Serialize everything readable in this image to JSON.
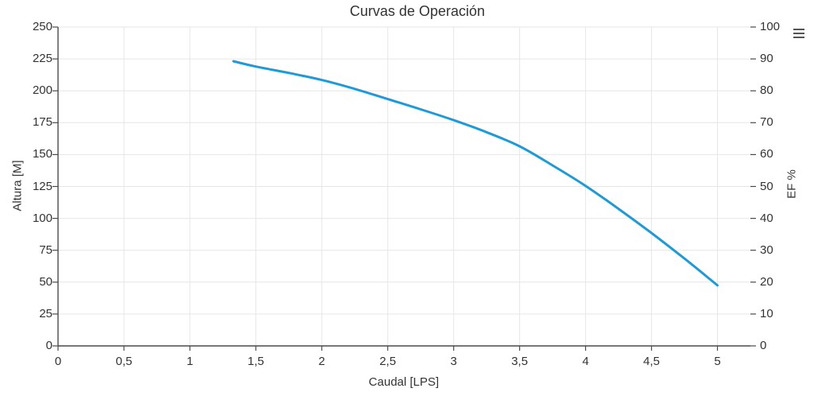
{
  "title": "Curvas de Operación",
  "menu_icon": "hamburger-icon",
  "colors": {
    "series": "#1e9ad8",
    "grid": "#e6e6e6",
    "axis": "#4a4a4a",
    "tick_text": "#333333",
    "title_text": "#333333",
    "menu_icon": "#545454"
  },
  "chart_data": {
    "type": "line",
    "title": "Curvas de Operación",
    "xlabel": "Caudal [LPS]",
    "ylabel_left": "Altura [M]",
    "ylabel_right": "EF %",
    "xlim": [
      0,
      5.25
    ],
    "ylim_left": [
      0,
      250
    ],
    "ylim_right": [
      0,
      100
    ],
    "grid": true,
    "legend": false,
    "x_ticks": [
      {
        "v": 0,
        "label": "0"
      },
      {
        "v": 0.5,
        "label": "0,5"
      },
      {
        "v": 1,
        "label": "1"
      },
      {
        "v": 1.5,
        "label": "1,5"
      },
      {
        "v": 2,
        "label": "2"
      },
      {
        "v": 2.5,
        "label": "2,5"
      },
      {
        "v": 3,
        "label": "3"
      },
      {
        "v": 3.5,
        "label": "3,5"
      },
      {
        "v": 4,
        "label": "4"
      },
      {
        "v": 4.5,
        "label": "4,5"
      },
      {
        "v": 5,
        "label": "5"
      }
    ],
    "y_left_ticks": [
      {
        "v": 0,
        "label": "0"
      },
      {
        "v": 25,
        "label": "25"
      },
      {
        "v": 50,
        "label": "50"
      },
      {
        "v": 75,
        "label": "75"
      },
      {
        "v": 100,
        "label": "100"
      },
      {
        "v": 125,
        "label": "125"
      },
      {
        "v": 150,
        "label": "150"
      },
      {
        "v": 175,
        "label": "175"
      },
      {
        "v": 200,
        "label": "200"
      },
      {
        "v": 225,
        "label": "225"
      },
      {
        "v": 250,
        "label": "250"
      }
    ],
    "y_right_ticks": [
      {
        "v": 0,
        "label": "0"
      },
      {
        "v": 10,
        "label": "10"
      },
      {
        "v": 20,
        "label": "20"
      },
      {
        "v": 30,
        "label": "30"
      },
      {
        "v": 40,
        "label": "40"
      },
      {
        "v": 50,
        "label": "50"
      },
      {
        "v": 60,
        "label": "60"
      },
      {
        "v": 70,
        "label": "70"
      },
      {
        "v": 80,
        "label": "80"
      },
      {
        "v": 90,
        "label": "90"
      },
      {
        "v": 100,
        "label": "100"
      }
    ],
    "series": [
      {
        "name": "Altura",
        "axis": "left",
        "points": [
          [
            1.33,
            223.2
          ],
          [
            1.5,
            219.0
          ],
          [
            1.75,
            214.0
          ],
          [
            2.0,
            208.5
          ],
          [
            2.25,
            201.5
          ],
          [
            2.5,
            193.5
          ],
          [
            2.75,
            185.5
          ],
          [
            3.0,
            177.0
          ],
          [
            3.25,
            167.5
          ],
          [
            3.5,
            156.5
          ],
          [
            3.75,
            141.5
          ],
          [
            4.0,
            125.5
          ],
          [
            4.25,
            107.5
          ],
          [
            4.5,
            88.5
          ],
          [
            4.75,
            68.5
          ],
          [
            5.0,
            47.5
          ]
        ]
      }
    ]
  }
}
